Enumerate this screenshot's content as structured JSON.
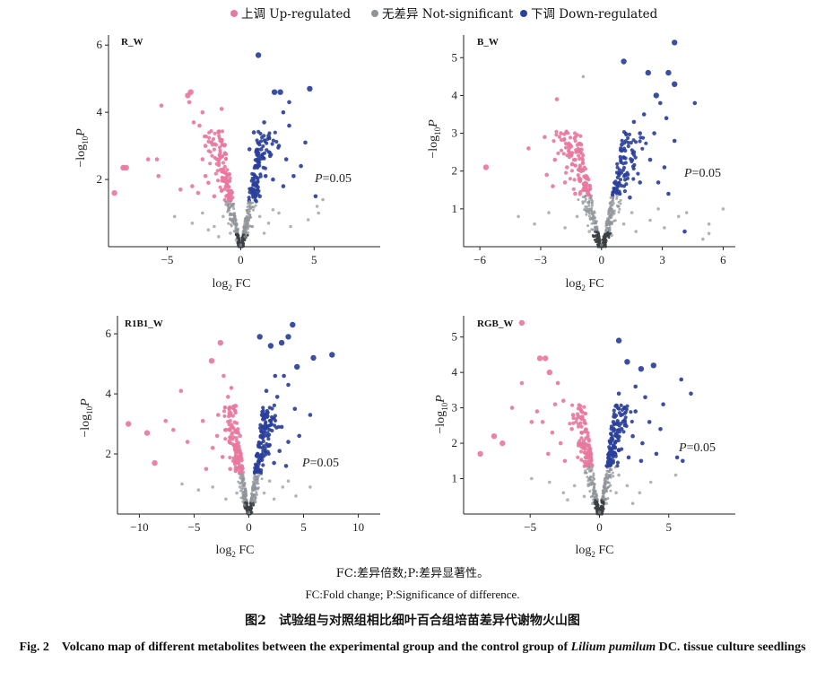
{
  "legend": {
    "up": "上调 Up-regulated",
    "ns": "无差异 Not-significant",
    "down": "下调 Down-regulated"
  },
  "colors": {
    "up": "#e8789f",
    "ns": "#8f9499",
    "down": "#2a3f9a",
    "axis": "#222222"
  },
  "axis_labels": {
    "x": "log2 FC",
    "y": "-log10 P"
  },
  "notes": {
    "abbr_cn": "FC:差异倍数;P:差异显著性。",
    "abbr_en": "FC:Fold change; P:Significance of difference."
  },
  "caption": {
    "cn": "图2　试验组与对照组相比细叶百合组培苗差异代谢物火山图",
    "en_prefix": "Fig. 2　Volcano map of different metabolites between the experimental group and the control group of ",
    "en_species": "Lilium pumilum",
    "en_suffix": " DC. tissue culture seedlings"
  },
  "chart_data": [
    {
      "type": "scatter",
      "title": "R_W",
      "xlabel": "log2 FC",
      "ylabel": "-log10 P",
      "xlim": [
        -9,
        9.5
      ],
      "ylim": [
        0,
        6.3
      ],
      "xticks": [
        -5,
        0,
        5
      ],
      "yticks": [
        2,
        4,
        6
      ],
      "threshold_label": "P=0.05",
      "groups": {
        "up": [
          [
            -8.6,
            1.6
          ],
          [
            -8.0,
            2.35
          ],
          [
            -7.8,
            2.35
          ],
          [
            -6.3,
            2.6
          ],
          [
            -5.7,
            2.6
          ],
          [
            -5.6,
            2.1
          ],
          [
            -5.4,
            4.2
          ],
          [
            -3.6,
            4.5
          ],
          [
            -3.5,
            4.3
          ],
          [
            -3.4,
            4.6
          ],
          [
            -3.2,
            3.7
          ],
          [
            -2.8,
            3.6
          ],
          [
            -2.6,
            4.0
          ],
          [
            -1.3,
            4.1
          ],
          [
            -2.6,
            2.6
          ],
          [
            -2.4,
            2.1
          ],
          [
            -2.0,
            3.1
          ],
          [
            -1.6,
            2.6
          ],
          [
            -1.2,
            2.3
          ],
          [
            -3.3,
            1.8
          ],
          [
            -2.9,
            1.6
          ],
          [
            -2.2,
            1.9
          ],
          [
            -1.8,
            1.5
          ],
          [
            -1.0,
            1.8
          ],
          [
            -0.8,
            1.4
          ],
          [
            -4.1,
            1.7
          ],
          [
            -1.5,
            3.4
          ],
          [
            -2.4,
            3.0
          ]
        ],
        "ns": [
          [
            -4.5,
            0.9
          ],
          [
            -3.3,
            0.7
          ],
          [
            -2.6,
            1.0
          ],
          [
            -1.8,
            0.6
          ],
          [
            -1.2,
            0.9
          ],
          [
            -0.7,
            0.4
          ],
          [
            -0.3,
            0.2
          ],
          [
            0,
            0.05
          ],
          [
            0.3,
            0.3
          ],
          [
            0.8,
            0.6
          ],
          [
            1.3,
            0.9
          ],
          [
            1.9,
            0.7
          ],
          [
            2.6,
            1.0
          ],
          [
            3.4,
            0.6
          ],
          [
            4.6,
            0.8
          ],
          [
            5.2,
            1.2
          ],
          [
            5.6,
            1.4
          ],
          [
            5.3,
            1.0
          ],
          [
            -0.5,
            0.8
          ],
          [
            0.5,
            1.0
          ],
          [
            -1.5,
            0.3
          ],
          [
            1.6,
            0.4
          ],
          [
            2.2,
            1.1
          ],
          [
            -2.2,
            0.5
          ]
        ],
        "down": [
          [
            1.2,
            5.7
          ],
          [
            4.7,
            4.7
          ],
          [
            2.3,
            4.6
          ],
          [
            2.7,
            4.6
          ],
          [
            3.3,
            4.3
          ],
          [
            3.3,
            3.6
          ],
          [
            4.4,
            3.1
          ],
          [
            0.9,
            3.4
          ],
          [
            1.4,
            2.9
          ],
          [
            1.9,
            3.3
          ],
          [
            2.6,
            3.0
          ],
          [
            3.1,
            2.6
          ],
          [
            1.7,
            2.1
          ],
          [
            2.2,
            2.0
          ],
          [
            0.8,
            1.7
          ],
          [
            1.3,
            1.5
          ],
          [
            2.9,
            1.8
          ],
          [
            3.6,
            2.1
          ],
          [
            4.1,
            2.4
          ],
          [
            5.1,
            1.5
          ],
          [
            1.0,
            2.4
          ],
          [
            2.0,
            2.7
          ],
          [
            0.6,
            2.9
          ],
          [
            1.6,
            3.7
          ],
          [
            2.9,
            4.0
          ]
        ]
      }
    },
    {
      "type": "scatter",
      "title": "B_W",
      "xlabel": "log2 FC",
      "ylabel": "-log10 P",
      "xlim": [
        -6.8,
        6.6
      ],
      "ylim": [
        0,
        5.6
      ],
      "xticks": [
        -6,
        -3,
        0,
        3,
        6
      ],
      "yticks": [
        1,
        2,
        3,
        4,
        5
      ],
      "threshold_label": "P=0.05",
      "groups": {
        "up": [
          [
            -5.7,
            2.1
          ],
          [
            -3.6,
            2.6
          ],
          [
            -2.2,
            3.9
          ],
          [
            -2.0,
            3.0
          ],
          [
            -1.6,
            2.6
          ],
          [
            -1.3,
            2.3
          ],
          [
            -1.0,
            2.0
          ],
          [
            -2.7,
            1.9
          ],
          [
            -2.4,
            1.6
          ],
          [
            -1.8,
            1.7
          ],
          [
            -1.3,
            1.4
          ],
          [
            -0.9,
            1.5
          ],
          [
            -1.7,
            2.1
          ],
          [
            -2.3,
            2.3
          ],
          [
            -1.0,
            2.7
          ],
          [
            -2.8,
            2.9
          ]
        ],
        "ns": [
          [
            -4.1,
            0.8
          ],
          [
            -3.3,
            0.6
          ],
          [
            -2.6,
            0.9
          ],
          [
            -1.8,
            0.5
          ],
          [
            -1.2,
            0.8
          ],
          [
            -0.6,
            0.4
          ],
          [
            0,
            0.05
          ],
          [
            0.5,
            0.3
          ],
          [
            1.1,
            0.6
          ],
          [
            1.7,
            0.4
          ],
          [
            2.4,
            0.7
          ],
          [
            3.1,
            0.5
          ],
          [
            4.2,
            0.9
          ],
          [
            5.3,
            0.6
          ],
          [
            6.0,
            1.0
          ],
          [
            -0.9,
            4.5
          ],
          [
            -0.4,
            0.7
          ],
          [
            0.4,
            1.0
          ],
          [
            1.5,
            0.9
          ],
          [
            2.8,
            1.0
          ],
          [
            3.8,
            0.8
          ],
          [
            5.0,
            0.2
          ],
          [
            5.3,
            0.35
          ]
        ],
        "down": [
          [
            3.6,
            5.4
          ],
          [
            1.1,
            4.9
          ],
          [
            2.3,
            4.6
          ],
          [
            3.3,
            4.6
          ],
          [
            3.6,
            4.3
          ],
          [
            2.7,
            4.0
          ],
          [
            2.9,
            3.8
          ],
          [
            4.6,
            3.8
          ],
          [
            1.6,
            3.3
          ],
          [
            2.1,
            3.5
          ],
          [
            3.2,
            3.4
          ],
          [
            1.9,
            3.0
          ],
          [
            2.6,
            3.0
          ],
          [
            3.6,
            2.8
          ],
          [
            1.0,
            2.7
          ],
          [
            1.6,
            2.5
          ],
          [
            2.4,
            2.3
          ],
          [
            3.1,
            2.1
          ],
          [
            1.2,
            1.9
          ],
          [
            1.9,
            1.7
          ],
          [
            2.8,
            1.7
          ],
          [
            3.3,
            1.4
          ],
          [
            0.9,
            1.4
          ],
          [
            1.4,
            1.3
          ],
          [
            4.1,
            0.4
          ]
        ]
      }
    },
    {
      "type": "scatter",
      "title": "R1B1_W",
      "xlabel": "log2 FC",
      "ylabel": "-log10 P",
      "xlim": [
        -12,
        12
      ],
      "ylim": [
        0,
        6.6
      ],
      "xticks": [
        -10,
        -5,
        0,
        5,
        10
      ],
      "yticks": [
        2,
        4,
        6
      ],
      "threshold_label": "P=0.05",
      "groups": {
        "up": [
          [
            -11.0,
            3.0
          ],
          [
            -9.3,
            2.7
          ],
          [
            -8.6,
            1.7
          ],
          [
            -7.6,
            3.1
          ],
          [
            -6.9,
            2.8
          ],
          [
            -6.2,
            4.1
          ],
          [
            -5.6,
            2.4
          ],
          [
            -4.2,
            3.1
          ],
          [
            -3.4,
            5.1
          ],
          [
            -2.6,
            5.7
          ],
          [
            -2.3,
            4.6
          ],
          [
            -1.6,
            4.2
          ],
          [
            -1.2,
            3.6
          ],
          [
            -2.8,
            3.3
          ],
          [
            -2.1,
            2.8
          ],
          [
            -1.5,
            2.5
          ],
          [
            -3.3,
            2.2
          ],
          [
            -2.4,
            1.9
          ],
          [
            -1.7,
            1.5
          ],
          [
            -1.1,
            1.9
          ],
          [
            -0.8,
            2.6
          ],
          [
            -3.9,
            1.5
          ],
          [
            -2.9,
            2.6
          ],
          [
            -1.9,
            3.9
          ]
        ],
        "ns": [
          [
            -6.1,
            1.0
          ],
          [
            -4.6,
            0.8
          ],
          [
            -3.3,
            0.9
          ],
          [
            -2.1,
            0.5
          ],
          [
            -1.1,
            0.7
          ],
          [
            -0.4,
            0.3
          ],
          [
            0,
            0.05
          ],
          [
            0.6,
            0.4
          ],
          [
            1.4,
            0.7
          ],
          [
            2.3,
            0.5
          ],
          [
            3.1,
            0.9
          ],
          [
            4.3,
            0.6
          ],
          [
            5.6,
            0.9
          ],
          [
            -0.8,
            0.9
          ],
          [
            1.9,
            1.1
          ],
          [
            3.6,
            1.1
          ]
        ],
        "down": [
          [
            4.0,
            6.3
          ],
          [
            3.6,
            5.9
          ],
          [
            3.0,
            5.7
          ],
          [
            2.0,
            5.6
          ],
          [
            1.0,
            5.9
          ],
          [
            7.6,
            5.3
          ],
          [
            5.9,
            5.2
          ],
          [
            4.4,
            4.9
          ],
          [
            3.2,
            4.6
          ],
          [
            2.4,
            4.6
          ],
          [
            3.6,
            4.3
          ],
          [
            1.6,
            4.1
          ],
          [
            2.6,
            3.9
          ],
          [
            4.2,
            3.5
          ],
          [
            5.6,
            3.3
          ],
          [
            1.2,
            3.3
          ],
          [
            2.0,
            3.1
          ],
          [
            3.0,
            2.9
          ],
          [
            1.1,
            2.6
          ],
          [
            1.9,
            2.3
          ],
          [
            2.8,
            2.1
          ],
          [
            3.6,
            2.4
          ],
          [
            4.6,
            2.6
          ],
          [
            1.2,
            1.8
          ],
          [
            2.3,
            1.7
          ],
          [
            3.4,
            1.6
          ],
          [
            0.7,
            1.5
          ]
        ]
      }
    },
    {
      "type": "scatter",
      "title": "RGB_W",
      "xlabel": "log2 FC",
      "ylabel": "-log10 P",
      "xlim": [
        -9.8,
        9.8
      ],
      "ylim": [
        0,
        5.6
      ],
      "xticks": [
        -5,
        0,
        5
      ],
      "yticks": [
        1,
        2,
        3,
        4,
        5
      ],
      "threshold_label": "P=0.05",
      "groups": {
        "up": [
          [
            -8.6,
            1.7
          ],
          [
            -7.6,
            2.2
          ],
          [
            -7.0,
            2.0
          ],
          [
            -6.3,
            3.0
          ],
          [
            -5.6,
            5.4
          ],
          [
            -4.3,
            4.4
          ],
          [
            -3.9,
            4.4
          ],
          [
            -3.6,
            4.0
          ],
          [
            -5.6,
            3.7
          ],
          [
            -3.0,
            3.7
          ],
          [
            -2.6,
            3.2
          ],
          [
            -4.9,
            2.6
          ],
          [
            -4.1,
            2.6
          ],
          [
            -3.4,
            2.3
          ],
          [
            -2.8,
            2.0
          ],
          [
            -2.0,
            2.4
          ],
          [
            -1.5,
            2.0
          ],
          [
            -1.0,
            1.6
          ],
          [
            -3.7,
            1.7
          ],
          [
            -2.5,
            1.5
          ],
          [
            -4.5,
            2.9
          ],
          [
            -3.2,
            3.1
          ],
          [
            -1.9,
            2.8
          ]
        ],
        "ns": [
          [
            -4.9,
            1.0
          ],
          [
            -3.6,
            0.9
          ],
          [
            -2.6,
            0.6
          ],
          [
            -1.8,
            0.8
          ],
          [
            -1.1,
            0.5
          ],
          [
            -0.5,
            0.3
          ],
          [
            0,
            0.05
          ],
          [
            0.5,
            0.3
          ],
          [
            1.2,
            0.6
          ],
          [
            2.0,
            0.8
          ],
          [
            2.9,
            0.6
          ],
          [
            3.7,
            0.9
          ],
          [
            5.5,
            1.1
          ],
          [
            -0.8,
            0.8
          ],
          [
            1.4,
            1.1
          ],
          [
            -2.3,
            0.4
          ],
          [
            2.4,
            0.3
          ]
        ],
        "down": [
          [
            1.4,
            4.9
          ],
          [
            2.0,
            4.3
          ],
          [
            3.0,
            4.1
          ],
          [
            3.9,
            4.2
          ],
          [
            5.9,
            3.8
          ],
          [
            6.6,
            3.4
          ],
          [
            2.6,
            3.6
          ],
          [
            1.4,
            3.4
          ],
          [
            3.3,
            3.3
          ],
          [
            4.6,
            3.1
          ],
          [
            1.8,
            3.0
          ],
          [
            2.6,
            2.9
          ],
          [
            3.6,
            2.6
          ],
          [
            4.4,
            2.4
          ],
          [
            1.0,
            2.6
          ],
          [
            1.6,
            2.4
          ],
          [
            2.4,
            2.2
          ],
          [
            3.1,
            2.0
          ],
          [
            0.8,
            2.0
          ],
          [
            1.4,
            1.8
          ],
          [
            2.1,
            1.6
          ],
          [
            3.0,
            1.5
          ],
          [
            4.1,
            1.7
          ],
          [
            5.6,
            1.6
          ],
          [
            6.0,
            1.5
          ]
        ]
      }
    }
  ]
}
